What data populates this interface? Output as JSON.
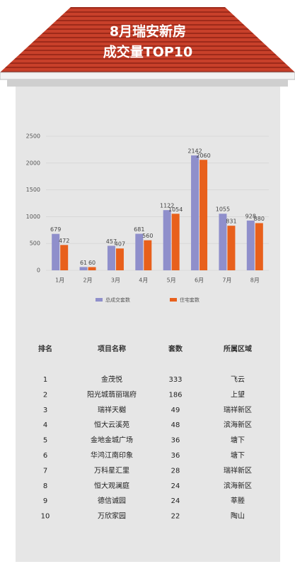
{
  "header": {
    "title_line1": "8月瑞安新房",
    "title_line2": "成交量TOP10"
  },
  "chart_data": {
    "type": "bar",
    "categories": [
      "1月",
      "2月",
      "3月",
      "4月",
      "5月",
      "6月",
      "7月",
      "8月"
    ],
    "series": [
      {
        "name": "总成交套数",
        "color": "#8f8fcb",
        "values": [
          679,
          61,
          457,
          681,
          1122,
          2142,
          1055,
          928
        ]
      },
      {
        "name": "住宅套数",
        "color": "#e8601c",
        "values": [
          472,
          60,
          407,
          560,
          1054,
          2060,
          831,
          880
        ]
      }
    ],
    "ylim": [
      0,
      2500
    ],
    "yticks": [
      0,
      500,
      1000,
      1500,
      2000,
      2500
    ],
    "grid": true
  },
  "table": {
    "headers": [
      "排名",
      "项目名称",
      "套数",
      "所属区域"
    ],
    "rows": [
      [
        1,
        "金茂悦",
        333,
        "飞云"
      ],
      [
        2,
        "阳光城翡丽瑞府",
        186,
        "上望"
      ],
      [
        3,
        "瑞祥天樾",
        49,
        "瑞祥新区"
      ],
      [
        4,
        "恒大云溪苑",
        48,
        "滨海新区"
      ],
      [
        5,
        "金地金城广场",
        36,
        "塘下"
      ],
      [
        6,
        "华鸿江南印象",
        36,
        "塘下"
      ],
      [
        7,
        "万科星汇里",
        28,
        "瑞祥新区"
      ],
      [
        8,
        "恒大观澜庭",
        24,
        "滨海新区"
      ],
      [
        9,
        "德信诚园",
        24,
        "莘塍"
      ],
      [
        10,
        "万欣家园",
        22,
        "陶山"
      ]
    ]
  }
}
